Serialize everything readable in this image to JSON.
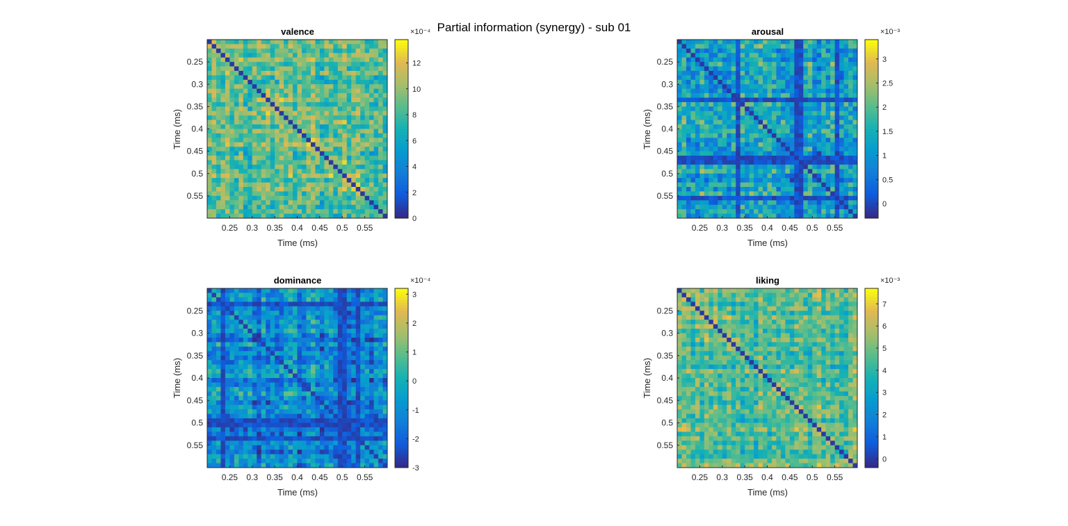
{
  "figure": {
    "title": "Partial information (synergy) - sub 01"
  },
  "chart_data": [
    {
      "type": "heatmap",
      "title": "valence",
      "xlabel": "Time (ms)",
      "ylabel": "Time (ms)",
      "xticks": [
        "0.25",
        "0.3",
        "0.35",
        "0.4",
        "0.45",
        "0.5",
        "0.55"
      ],
      "yticks": [
        "0.25",
        "0.3",
        "0.35",
        "0.4",
        "0.45",
        "0.5",
        "0.55"
      ],
      "xlim": [
        0.2,
        0.6
      ],
      "ylim": [
        0.2,
        0.6
      ],
      "grid_size": 40,
      "colormap": "parula",
      "colorbar": {
        "ticks": [
          "0",
          "2",
          "4",
          "6",
          "8",
          "10",
          "12"
        ],
        "exponent": "×10⁻⁴",
        "range": [
          0,
          13.8
        ]
      },
      "value_scale": 0.0001,
      "pattern": {
        "base": 0.62,
        "var": 0.22,
        "diag_band": 0.1,
        "diag_value": 0.04
      }
    },
    {
      "type": "heatmap",
      "title": "arousal",
      "xlabel": "Time (ms)",
      "ylabel": "Time (ms)",
      "xticks": [
        "0.25",
        "0.3",
        "0.35",
        "0.4",
        "0.45",
        "0.5",
        "0.55"
      ],
      "yticks": [
        "0.25",
        "0.3",
        "0.35",
        "0.4",
        "0.45",
        "0.5",
        "0.55"
      ],
      "xlim": [
        0.2,
        0.6
      ],
      "ylim": [
        0.2,
        0.6
      ],
      "grid_size": 40,
      "colormap": "parula",
      "colorbar": {
        "ticks": [
          "0",
          "0.5",
          "1",
          "1.5",
          "2",
          "2.5",
          "3"
        ],
        "exponent": "×10⁻³",
        "range": [
          -0.3,
          3.4
        ]
      },
      "value_scale": 0.001,
      "pattern": {
        "base": 0.42,
        "var": 0.26,
        "diag_band": 0.0,
        "diag_value": 0.04,
        "dark_lines": [
          26,
          27,
          13,
          35
        ]
      }
    },
    {
      "type": "heatmap",
      "title": "dominance",
      "xlabel": "Time (ms)",
      "ylabel": "Time (ms)",
      "xticks": [
        "0.25",
        "0.3",
        "0.35",
        "0.4",
        "0.45",
        "0.5",
        "0.55"
      ],
      "yticks": [
        "0.25",
        "0.3",
        "0.35",
        "0.4",
        "0.45",
        "0.5",
        "0.55"
      ],
      "xlim": [
        0.2,
        0.6
      ],
      "ylim": [
        0.2,
        0.6
      ],
      "grid_size": 40,
      "colormap": "parula",
      "colorbar": {
        "ticks": [
          "-3",
          "-2",
          "-1",
          "0",
          "1",
          "2",
          "3"
        ],
        "exponent": "×10⁻⁴",
        "range": [
          -3.0,
          3.2
        ]
      },
      "value_scale": 0.0001,
      "pattern": {
        "base": 0.3,
        "var": 0.24,
        "diag_band": 0.0,
        "diag_value": 0.06,
        "dark_lines": [
          29,
          30,
          3,
          33
        ]
      }
    },
    {
      "type": "heatmap",
      "title": "liking",
      "xlabel": "Time (ms)",
      "ylabel": "Time (ms)",
      "xticks": [
        "0.25",
        "0.3",
        "0.35",
        "0.4",
        "0.45",
        "0.5",
        "0.55"
      ],
      "yticks": [
        "0.25",
        "0.3",
        "0.35",
        "0.4",
        "0.45",
        "0.5",
        "0.55"
      ],
      "xlim": [
        0.2,
        0.6
      ],
      "ylim": [
        0.2,
        0.6
      ],
      "grid_size": 40,
      "colormap": "parula",
      "colorbar": {
        "ticks": [
          "0",
          "1",
          "2",
          "3",
          "4",
          "5",
          "6",
          "7"
        ],
        "exponent": "×10⁻³",
        "range": [
          -0.4,
          7.7
        ]
      },
      "value_scale": 0.001,
      "pattern": {
        "base": 0.62,
        "var": 0.2,
        "diag_band": 0.08,
        "diag_value": 0.04
      }
    }
  ]
}
